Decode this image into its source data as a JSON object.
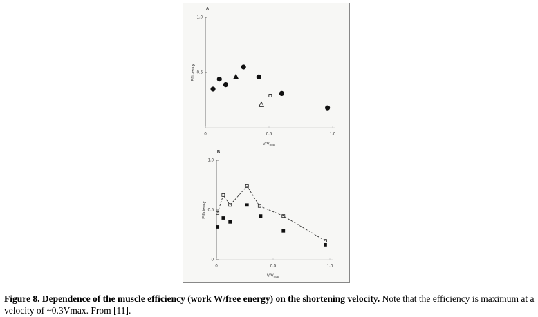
{
  "chart_data": [
    {
      "type": "scatter",
      "panel": "A",
      "ylabel": "Efficiency",
      "xlabel": "V/V",
      "xlabel_subscript": "max",
      "xlim": [
        0,
        1
      ],
      "ylim": [
        0,
        1
      ],
      "xticks": [
        0,
        {
          "value": 0.5,
          "label": "0.5"
        },
        {
          "value": 1,
          "label": "1.0"
        }
      ],
      "yticks": [
        {
          "value": 0.5,
          "label": "0.5"
        },
        {
          "value": 1,
          "label": "1.0"
        }
      ],
      "series": [
        {
          "marker": "circle",
          "filled": true,
          "color": "#111",
          "x": [
            0.06,
            0.11,
            0.16,
            0.3,
            0.42,
            0.6,
            0.96
          ],
          "values": [
            0.35,
            0.44,
            0.39,
            0.55,
            0.46,
            0.31,
            0.18
          ]
        },
        {
          "marker": "triangle",
          "filled": true,
          "color": "#111",
          "x": [
            0.24
          ],
          "values": [
            0.46
          ]
        },
        {
          "marker": "square",
          "filled": false,
          "color": "#111",
          "x": [
            0.51
          ],
          "values": [
            0.29
          ]
        },
        {
          "marker": "triangle",
          "filled": false,
          "color": "#111",
          "x": [
            0.44
          ],
          "values": [
            0.21
          ]
        }
      ]
    },
    {
      "type": "scatter",
      "panel": "B",
      "ylabel": "Efficiency",
      "xlabel": "V/V",
      "xlabel_subscript": "max",
      "xlim": [
        0,
        1
      ],
      "ylim": [
        0,
        1
      ],
      "xticks": [
        0,
        {
          "value": 0.5,
          "label": "0.5"
        },
        {
          "value": 1,
          "label": "1.0"
        }
      ],
      "yticks": [
        0,
        {
          "value": 0.5,
          "label": "0.5"
        },
        {
          "value": 1,
          "label": "1.0"
        }
      ],
      "series": [
        {
          "marker": "square",
          "filled": false,
          "line": "dashed",
          "color": "#222",
          "x": [
            0.01,
            0.06,
            0.12,
            0.27,
            0.38,
            0.59,
            0.96
          ],
          "values": [
            0.47,
            0.65,
            0.55,
            0.74,
            0.54,
            0.44,
            0.19
          ]
        },
        {
          "marker": "square",
          "filled": true,
          "color": "#111",
          "x": [
            0.01,
            0.06,
            0.12,
            0.27,
            0.39,
            0.59,
            0.96
          ],
          "values": [
            0.33,
            0.42,
            0.38,
            0.55,
            0.44,
            0.29,
            0.15
          ]
        }
      ]
    }
  ],
  "caption": {
    "bold": "Figure 8. Dependence of the muscle efficiency (work W/free energy) on the shortening velocity.",
    "text": "Note that the efficiency is maximum at a velocity of ~0.3Vmax. From [11]."
  }
}
